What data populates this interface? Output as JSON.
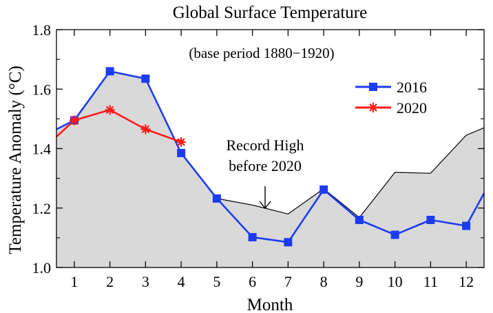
{
  "chart_data": {
    "type": "line",
    "title": "Global Surface Temperature",
    "subtitle": "(base period 1880−1920)",
    "xlabel": "Month",
    "ylabel": "Temperature Anomaly (°C)",
    "xlim": [
      0.5,
      12.5
    ],
    "ylim": [
      1.0,
      1.8
    ],
    "yticks": [
      1.0,
      1.2,
      1.4,
      1.6,
      1.8
    ],
    "ytick_labels": [
      "1.0",
      "1.2",
      "1.4",
      "1.6",
      "1.8"
    ],
    "categories": [
      "1",
      "2",
      "3",
      "4",
      "5",
      "6",
      "7",
      "8",
      "9",
      "10",
      "11",
      "12"
    ],
    "record_high": {
      "x": [
        0.5,
        1,
        2,
        3,
        4,
        5,
        6,
        7,
        8,
        9,
        10,
        11,
        12,
        12.5
      ],
      "values": [
        1.465,
        1.495,
        1.66,
        1.635,
        1.385,
        1.232,
        1.21,
        1.18,
        1.265,
        1.168,
        1.32,
        1.317,
        1.445,
        1.47
      ]
    },
    "series": [
      {
        "name": "2016",
        "color": "#1c3cf4",
        "marker": "square",
        "x": [
          0.5,
          1,
          2,
          3,
          4,
          5,
          6,
          7,
          8,
          9,
          10,
          11,
          12,
          12.5
        ],
        "values": [
          1.465,
          1.495,
          1.66,
          1.635,
          1.385,
          1.232,
          1.102,
          1.085,
          1.262,
          1.16,
          1.11,
          1.16,
          1.14,
          1.25
        ],
        "marker_from": 1,
        "marker_to": 12
      },
      {
        "name": "2020",
        "color": "#ff1a1a",
        "marker": "asterisk",
        "x": [
          0.5,
          1,
          2,
          3,
          4
        ],
        "values": [
          1.44,
          1.495,
          1.53,
          1.465,
          1.422
        ],
        "marker_from": 1,
        "marker_to": 4
      }
    ],
    "legend_position": "upper-right",
    "annotation": {
      "line1": "Record High",
      "line2": "before 2020",
      "target_x": 6.5,
      "target_y": 1.2
    },
    "shade_color": "#d9d9d9"
  }
}
